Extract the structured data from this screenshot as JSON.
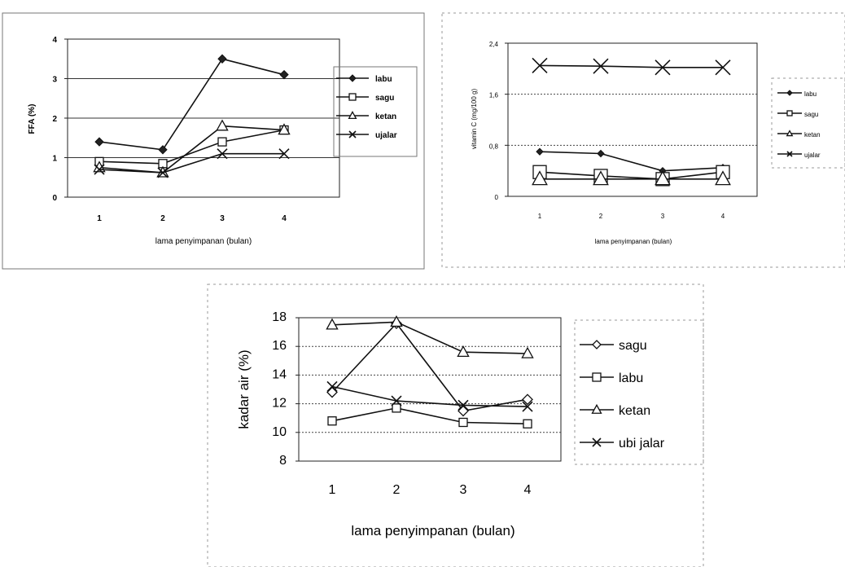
{
  "chart_data": [
    {
      "type": "line",
      "title": "",
      "xlabel": "lama penyimpanan (bulan)",
      "ylabel": "FFA (%)",
      "categories": [
        "1",
        "2",
        "3",
        "4"
      ],
      "yticks": [
        "0",
        "1",
        "2",
        "3",
        "4"
      ],
      "ylim": [
        0,
        4
      ],
      "grid": "horizontal solid at 1, 2, 3",
      "legend_position": "right",
      "series": [
        {
          "name": "labu",
          "marker": "diamond-filled",
          "values": [
            1.4,
            1.2,
            3.5,
            3.1
          ]
        },
        {
          "name": "sagu",
          "marker": "square-open",
          "values": [
            0.9,
            0.85,
            1.4,
            1.7
          ]
        },
        {
          "name": "ketan",
          "marker": "triangle-open",
          "values": [
            0.75,
            0.62,
            1.8,
            1.7
          ]
        },
        {
          "name": "ujalar",
          "marker": "x",
          "values": [
            0.7,
            0.62,
            1.1,
            1.1
          ]
        }
      ]
    },
    {
      "type": "line",
      "title": "",
      "xlabel": "lama penyimpanan (bulan)",
      "ylabel": "vitamin C (mg/100 g)",
      "categories": [
        "1",
        "2",
        "3",
        "4"
      ],
      "yticks": [
        "0",
        "0,8",
        "1,6",
        "2,4"
      ],
      "ylim": [
        0,
        2.4
      ],
      "grid": "horizontal dashed at 0.8, 1.6",
      "legend_position": "right",
      "series": [
        {
          "name": "labu",
          "marker": "diamond-filled",
          "values": [
            0.7,
            0.67,
            0.4,
            0.45
          ]
        },
        {
          "name": "sagu",
          "marker": "square-open",
          "values": [
            0.38,
            0.32,
            0.27,
            0.38
          ]
        },
        {
          "name": "ketan",
          "marker": "triangle-open",
          "values": [
            0.27,
            0.27,
            0.27,
            0.27
          ]
        },
        {
          "name": "ujalar",
          "marker": "x",
          "values": [
            2.05,
            2.04,
            2.02,
            2.02
          ]
        }
      ]
    },
    {
      "type": "line",
      "title": "",
      "xlabel": "lama penyimpanan (bulan)",
      "ylabel": "kadar air (%)",
      "categories": [
        "1",
        "2",
        "3",
        "4"
      ],
      "yticks": [
        "8",
        "10",
        "12",
        "14",
        "16",
        "18"
      ],
      "ylim": [
        8,
        18
      ],
      "grid": "horizontal dashed",
      "legend_position": "right",
      "series": [
        {
          "name": "sagu",
          "marker": "diamond-open",
          "values": [
            12.8,
            17.6,
            11.5,
            12.3
          ]
        },
        {
          "name": "labu",
          "marker": "square-open",
          "values": [
            10.8,
            11.7,
            10.7,
            10.6
          ]
        },
        {
          "name": "ketan",
          "marker": "triangle-open",
          "values": [
            17.5,
            17.7,
            15.6,
            15.5
          ]
        },
        {
          "name": "ubi jalar",
          "marker": "x",
          "values": [
            13.2,
            12.2,
            11.9,
            11.8
          ]
        }
      ]
    }
  ]
}
